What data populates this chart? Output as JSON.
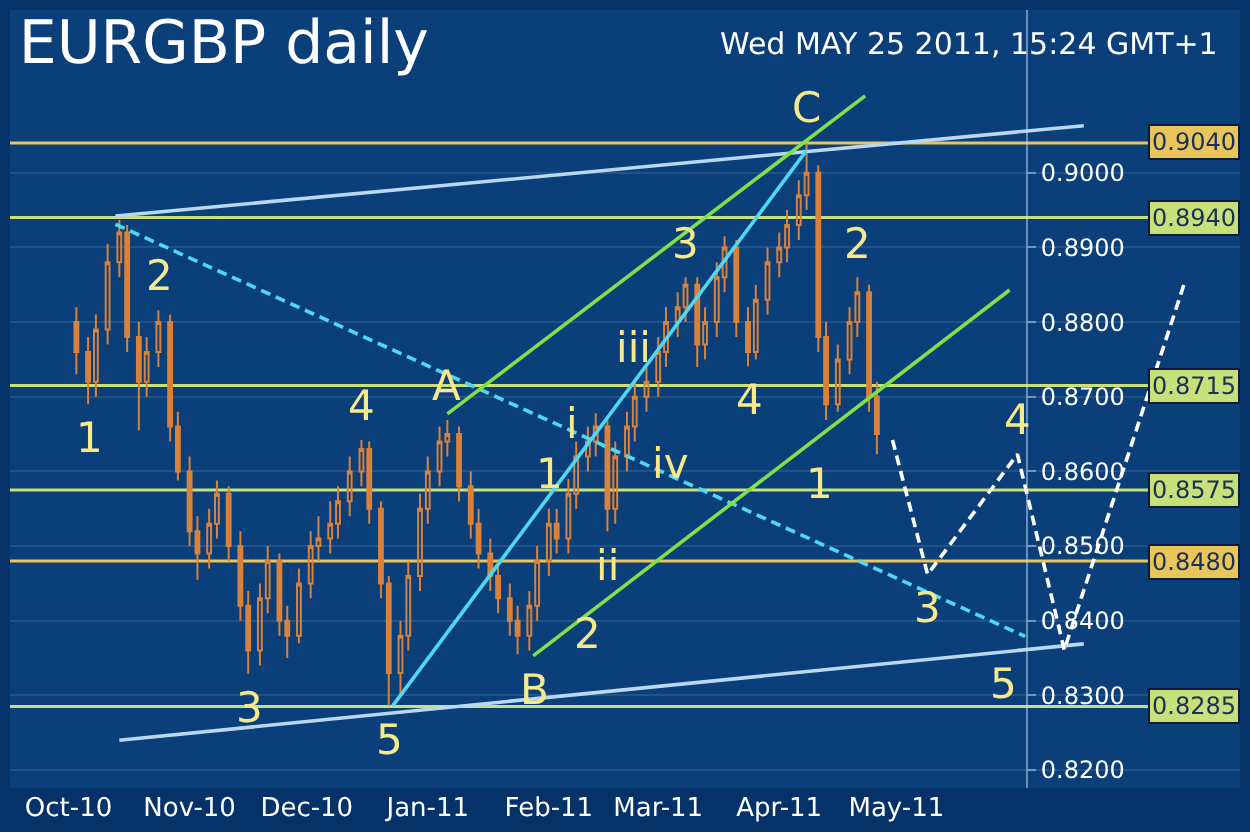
{
  "chart_data": {
    "type": "candlestick",
    "title": "EURGBP daily",
    "subtitle": "Wed MAY 25 2011, 15:24 GMT+1",
    "color": "#d9823b",
    "x": [
      "2010-10-03",
      "2010-10-06",
      "2010-10-08",
      "2010-10-11",
      "2010-10-14",
      "2010-10-16",
      "2010-10-19",
      "2010-10-21",
      "2010-10-24",
      "2010-10-27",
      "2010-10-29",
      "2010-11-01",
      "2010-11-03",
      "2010-11-06",
      "2010-11-08",
      "2010-11-11",
      "2010-11-14",
      "2010-11-16",
      "2010-11-19",
      "2010-11-21",
      "2010-11-24",
      "2010-11-26",
      "2010-11-29",
      "2010-12-02",
      "2010-12-04",
      "2010-12-07",
      "2010-12-09",
      "2010-12-12",
      "2010-12-15",
      "2010-12-17",
      "2010-12-20",
      "2010-12-22",
      "2010-12-25",
      "2010-12-27",
      "2010-12-30",
      "2011-01-01",
      "2011-01-04",
      "2011-01-06",
      "2011-01-09",
      "2011-01-12",
      "2011-01-14",
      "2011-01-17",
      "2011-01-19",
      "2011-01-22",
      "2011-01-24",
      "2011-01-27",
      "2011-01-29",
      "2011-02-01",
      "2011-02-03",
      "2011-02-06",
      "2011-02-08",
      "2011-02-11",
      "2011-02-13",
      "2011-02-16",
      "2011-02-18",
      "2011-02-21",
      "2011-02-23",
      "2011-02-26",
      "2011-03-01",
      "2011-03-03",
      "2011-03-06",
      "2011-03-08",
      "2011-03-11",
      "2011-03-13",
      "2011-03-16",
      "2011-03-18",
      "2011-03-21",
      "2011-03-24",
      "2011-03-26",
      "2011-03-29",
      "2011-04-01",
      "2011-04-03",
      "2011-04-06",
      "2011-04-08",
      "2011-04-11",
      "2011-04-13",
      "2011-04-16",
      "2011-04-19",
      "2011-04-21",
      "2011-04-24",
      "2011-04-26"
    ],
    "ohlc": [
      [
        0.88,
        0.882,
        0.873,
        0.876
      ],
      [
        0.876,
        0.878,
        0.869,
        0.872
      ],
      [
        0.872,
        0.881,
        0.87,
        0.879
      ],
      [
        0.879,
        0.8905,
        0.877,
        0.888
      ],
      [
        0.888,
        0.8937,
        0.886,
        0.892
      ],
      [
        0.892,
        0.893,
        0.876,
        0.878
      ],
      [
        0.878,
        0.88,
        0.8655,
        0.872
      ],
      [
        0.872,
        0.878,
        0.87,
        0.876
      ],
      [
        0.876,
        0.8816,
        0.874,
        0.88
      ],
      [
        0.88,
        0.881,
        0.864,
        0.866
      ],
      [
        0.866,
        0.868,
        0.8588,
        0.86
      ],
      [
        0.86,
        0.862,
        0.85,
        0.852
      ],
      [
        0.852,
        0.854,
        0.8455,
        0.849
      ],
      [
        0.849,
        0.855,
        0.847,
        0.853
      ],
      [
        0.853,
        0.8588,
        0.851,
        0.857
      ],
      [
        0.857,
        0.858,
        0.848,
        0.85
      ],
      [
        0.85,
        0.852,
        0.84,
        0.842
      ],
      [
        0.842,
        0.844,
        0.8329,
        0.836
      ],
      [
        0.836,
        0.845,
        0.834,
        0.843
      ],
      [
        0.843,
        0.85,
        0.841,
        0.848
      ],
      [
        0.848,
        0.849,
        0.838,
        0.84
      ],
      [
        0.84,
        0.842,
        0.835,
        0.838
      ],
      [
        0.838,
        0.847,
        0.837,
        0.845
      ],
      [
        0.845,
        0.852,
        0.843,
        0.85
      ],
      [
        0.85,
        0.854,
        0.848,
        0.851
      ],
      [
        0.851,
        0.856,
        0.849,
        0.853
      ],
      [
        0.853,
        0.858,
        0.851,
        0.856
      ],
      [
        0.856,
        0.862,
        0.854,
        0.86
      ],
      [
        0.86,
        0.8642,
        0.858,
        0.863
      ],
      [
        0.863,
        0.864,
        0.853,
        0.855
      ],
      [
        0.855,
        0.856,
        0.843,
        0.845
      ],
      [
        0.845,
        0.846,
        0.8286,
        0.833
      ],
      [
        0.833,
        0.84,
        0.83,
        0.838
      ],
      [
        0.838,
        0.848,
        0.836,
        0.846
      ],
      [
        0.846,
        0.857,
        0.844,
        0.855
      ],
      [
        0.855,
        0.862,
        0.853,
        0.86
      ],
      [
        0.86,
        0.866,
        0.858,
        0.864
      ],
      [
        0.864,
        0.8669,
        0.862,
        0.865
      ],
      [
        0.865,
        0.866,
        0.856,
        0.858
      ],
      [
        0.858,
        0.86,
        0.851,
        0.853
      ],
      [
        0.853,
        0.855,
        0.847,
        0.849
      ],
      [
        0.849,
        0.851,
        0.844,
        0.846
      ],
      [
        0.846,
        0.848,
        0.841,
        0.843
      ],
      [
        0.843,
        0.845,
        0.838,
        0.84
      ],
      [
        0.84,
        0.842,
        0.8355,
        0.838
      ],
      [
        0.838,
        0.844,
        0.836,
        0.842
      ],
      [
        0.842,
        0.85,
        0.84,
        0.848
      ],
      [
        0.848,
        0.855,
        0.846,
        0.853
      ],
      [
        0.853,
        0.855,
        0.849,
        0.851
      ],
      [
        0.851,
        0.859,
        0.849,
        0.857
      ],
      [
        0.857,
        0.864,
        0.855,
        0.862
      ],
      [
        0.862,
        0.866,
        0.86,
        0.864
      ],
      [
        0.864,
        0.8678,
        0.862,
        0.866
      ],
      [
        0.866,
        0.867,
        0.852,
        0.855
      ],
      [
        0.855,
        0.864,
        0.853,
        0.862
      ],
      [
        0.862,
        0.868,
        0.86,
        0.866
      ],
      [
        0.866,
        0.872,
        0.864,
        0.87
      ],
      [
        0.87,
        0.874,
        0.868,
        0.872
      ],
      [
        0.872,
        0.878,
        0.87,
        0.876
      ],
      [
        0.876,
        0.882,
        0.874,
        0.88
      ],
      [
        0.88,
        0.884,
        0.878,
        0.882
      ],
      [
        0.882,
        0.886,
        0.88,
        0.885
      ],
      [
        0.885,
        0.886,
        0.874,
        0.877
      ],
      [
        0.877,
        0.882,
        0.875,
        0.88
      ],
      [
        0.88,
        0.888,
        0.878,
        0.886
      ],
      [
        0.886,
        0.8915,
        0.884,
        0.89
      ],
      [
        0.89,
        0.891,
        0.878,
        0.88
      ],
      [
        0.88,
        0.882,
        0.8741,
        0.876
      ],
      [
        0.876,
        0.885,
        0.875,
        0.883
      ],
      [
        0.883,
        0.89,
        0.881,
        0.888
      ],
      [
        0.888,
        0.892,
        0.886,
        0.89
      ],
      [
        0.89,
        0.895,
        0.888,
        0.893
      ],
      [
        0.893,
        0.899,
        0.891,
        0.897
      ],
      [
        0.897,
        0.904,
        0.895,
        0.9
      ],
      [
        0.9,
        0.901,
        0.876,
        0.878
      ],
      [
        0.878,
        0.88,
        0.8669,
        0.869
      ],
      [
        0.869,
        0.877,
        0.868,
        0.875
      ],
      [
        0.875,
        0.882,
        0.873,
        0.88
      ],
      [
        0.88,
        0.886,
        0.878,
        0.884
      ],
      [
        0.884,
        0.885,
        0.868,
        0.87
      ],
      [
        0.87,
        0.872,
        0.8623,
        0.865
      ]
    ],
    "series": [
      {
        "type": "line",
        "color": "#4fd8f0",
        "line_style": "dashed",
        "x": [
          "2010-10-13",
          "2011-06-03"
        ],
        "values": [
          0.8931,
          0.8379
        ]
      },
      {
        "type": "line",
        "color": "#b8d8f0",
        "line_style": "solid",
        "x": [
          "2010-10-13",
          "2011-06-18"
        ],
        "values": [
          0.8942,
          0.9063
        ]
      },
      {
        "type": "line",
        "color": "#b8d8f0",
        "line_style": "solid",
        "x": [
          "2010-10-14",
          "2011-06-18"
        ],
        "values": [
          0.824,
          0.8369
        ]
      },
      {
        "type": "line",
        "color": "#4fd8f0",
        "line_style": "solid",
        "x": [
          "2010-12-23",
          "2011-04-08"
        ],
        "values": [
          0.8286,
          0.903
        ]
      },
      {
        "type": "line",
        "color": "#7ee04a",
        "line_style": "solid",
        "x": [
          "2011-01-06",
          "2011-04-23"
        ],
        "values": [
          0.8677,
          0.9103
        ]
      },
      {
        "type": "line",
        "color": "#7ee04a",
        "line_style": "solid",
        "x": [
          "2011-01-28",
          "2011-05-30"
        ],
        "values": [
          0.8353,
          0.8843
        ]
      },
      {
        "type": "line",
        "color": "#ffffff",
        "line_style": "dashed",
        "x": [
          "2011-04-30",
          "2011-05-09",
          "2011-06-01",
          "2011-06-13",
          "2011-07-14"
        ],
        "values": [
          0.8642,
          0.8462,
          0.8623,
          0.8361,
          0.8856
        ]
      }
    ],
    "ref_lines": [
      {
        "axis": "y",
        "value": 0.904,
        "label": "0.9040",
        "color": "#e8c45a"
      },
      {
        "axis": "y",
        "value": 0.894,
        "label": "0.8940",
        "color": "#c8e07a"
      },
      {
        "axis": "y",
        "value": 0.8715,
        "label": "0.8715",
        "color": "#c8e07a"
      },
      {
        "axis": "y",
        "value": 0.8575,
        "label": "0.8575",
        "color": "#c8e07a"
      },
      {
        "axis": "y",
        "value": 0.848,
        "label": "0.8480",
        "color": "#e8c45a"
      },
      {
        "axis": "y",
        "value": 0.8285,
        "label": "0.8285",
        "color": "#c8e07a"
      }
    ],
    "annotations": [
      {
        "text": "1",
        "x": "2010-10-06",
        "y": 0.869
      },
      {
        "text": "2",
        "x": "2010-10-24",
        "y": 0.8816
      },
      {
        "text": "3",
        "x": "2010-11-16",
        "y": 0.8329
      },
      {
        "text": "4",
        "x": "2010-12-15",
        "y": 0.8642
      },
      {
        "text": "5",
        "x": "2010-12-22",
        "y": 0.8286
      },
      {
        "text": "A",
        "x": "2011-01-06",
        "y": 0.8669
      },
      {
        "text": "B",
        "x": "2011-01-28",
        "y": 0.8353
      },
      {
        "text": "C",
        "x": "2011-04-08",
        "y": 0.904
      },
      {
        "text": "1",
        "x": "2011-02-01",
        "y": 0.855
      },
      {
        "text": "2",
        "x": "2011-02-11",
        "y": 0.8428
      },
      {
        "text": "3",
        "x": "2011-03-08",
        "y": 0.886
      },
      {
        "text": "4",
        "x": "2011-03-24",
        "y": 0.8741
      },
      {
        "text": "i",
        "x": "2011-02-07",
        "y": 0.8663
      },
      {
        "text": "ii",
        "x": "2011-02-16",
        "y": 0.852
      },
      {
        "text": "iii",
        "x": "2011-02-23",
        "y": 0.872
      },
      {
        "text": "iv",
        "x": "2011-03-04",
        "y": 0.861
      },
      {
        "text": "1",
        "x": "2011-04-11",
        "y": 0.8629
      },
      {
        "text": "2",
        "x": "2011-04-21",
        "y": 0.886
      },
      {
        "text": "3",
        "x": "2011-05-09",
        "y": 0.8462
      },
      {
        "text": "4",
        "x": "2011-06-01",
        "y": 0.8623
      },
      {
        "text": "5",
        "x": "2011-06-13",
        "y": 0.8361
      }
    ],
    "xlim": [
      "2010-09-16",
      "2011-07-28"
    ],
    "xticks": [
      {
        "value": "2010-10-01",
        "label": "Oct-10"
      },
      {
        "value": "2010-11-01",
        "label": "Nov-10"
      },
      {
        "value": "2010-12-01",
        "label": "Dec-10"
      },
      {
        "value": "2011-01-01",
        "label": "Jan-11"
      },
      {
        "value": "2011-02-01",
        "label": "Feb-11"
      },
      {
        "value": "2011-03-01",
        "label": "Mar-11"
      },
      {
        "value": "2011-04-01",
        "label": "Apr-11"
      },
      {
        "value": "2011-05-01",
        "label": "May-11"
      }
    ],
    "ylim": [
      0.8176,
      0.9218
    ],
    "yticks": [
      {
        "value": 0.82,
        "label": "0.8200"
      },
      {
        "value": 0.83,
        "label": "0.8300"
      },
      {
        "value": 0.84,
        "label": "0.8400"
      },
      {
        "value": 0.85,
        "label": "0.8500"
      },
      {
        "value": 0.86,
        "label": "0.8600"
      },
      {
        "value": 0.87,
        "label": "0.8700"
      },
      {
        "value": 0.88,
        "label": "0.8800"
      },
      {
        "value": 0.89,
        "label": "0.8900"
      },
      {
        "value": 0.9,
        "label": "0.9000"
      }
    ],
    "grid": "y"
  }
}
